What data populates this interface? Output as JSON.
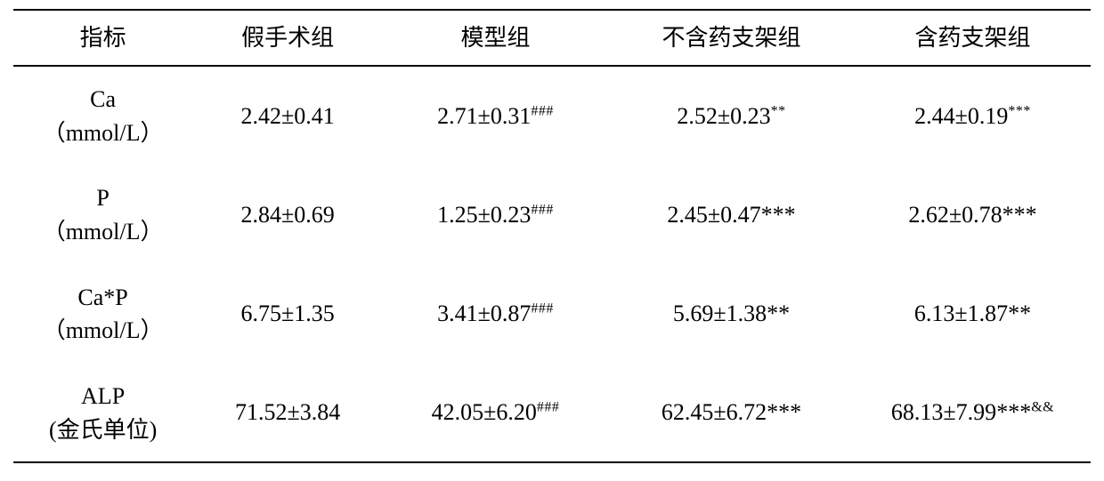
{
  "table": {
    "columns": [
      "指标",
      "假手术组",
      "模型组",
      "不含药支架组",
      "含药支架组"
    ],
    "col_align": [
      "center",
      "center",
      "center",
      "center",
      "center"
    ],
    "border_color": "#000000",
    "header_fontsize_pt": 20,
    "cell_fontsize_pt": 20,
    "sup_fontsize_pt": 12,
    "font_family": "Times New Roman / SimSun",
    "background_color": "#ffffff",
    "rows": [
      {
        "metric_name": "Ca",
        "metric_unit": "（mmol/L）",
        "cells": [
          {
            "value": "2.42±0.41",
            "sup": "",
            "sup_style": "none"
          },
          {
            "value": "2.71±0.31",
            "sup": "###",
            "sup_style": "super"
          },
          {
            "value": "2.52±0.23",
            "sup": "**",
            "sup_style": "super"
          },
          {
            "value": "2.44±0.19",
            "sup": "***",
            "sup_style": "super"
          }
        ]
      },
      {
        "metric_name": "P",
        "metric_unit": "（mmol/L）",
        "cells": [
          {
            "value": "2.84±0.69",
            "sup": "",
            "sup_style": "none"
          },
          {
            "value": "1.25±0.23",
            "sup": "###",
            "sup_style": "super"
          },
          {
            "value": "2.45±0.47",
            "sup": "***",
            "sup_style": "inline"
          },
          {
            "value": "2.62±0.78",
            "sup": "***",
            "sup_style": "inline"
          }
        ]
      },
      {
        "metric_name": "Ca*P",
        "metric_unit": "（mmol/L）",
        "cells": [
          {
            "value": "6.75±1.35",
            "sup": "",
            "sup_style": "none"
          },
          {
            "value": "3.41±0.87",
            "sup": "###",
            "sup_style": "super"
          },
          {
            "value": "5.69±1.38",
            "sup": "**",
            "sup_style": "inline"
          },
          {
            "value": "6.13±1.87",
            "sup": "**",
            "sup_style": "inline"
          }
        ]
      },
      {
        "metric_name": "ALP",
        "metric_unit": "(金氏单位)",
        "cells": [
          {
            "value": "71.52±3.84",
            "sup": "",
            "sup_style": "none"
          },
          {
            "value": "42.05±6.20",
            "sup": "###",
            "sup_style": "super"
          },
          {
            "value": "62.45±6.72",
            "sup": "***",
            "sup_style": "inline"
          },
          {
            "value": "68.13±7.99",
            "sup": "***",
            "sup_style": "inline",
            "sup2": "&&",
            "sup2_style": "super"
          }
        ]
      }
    ]
  }
}
